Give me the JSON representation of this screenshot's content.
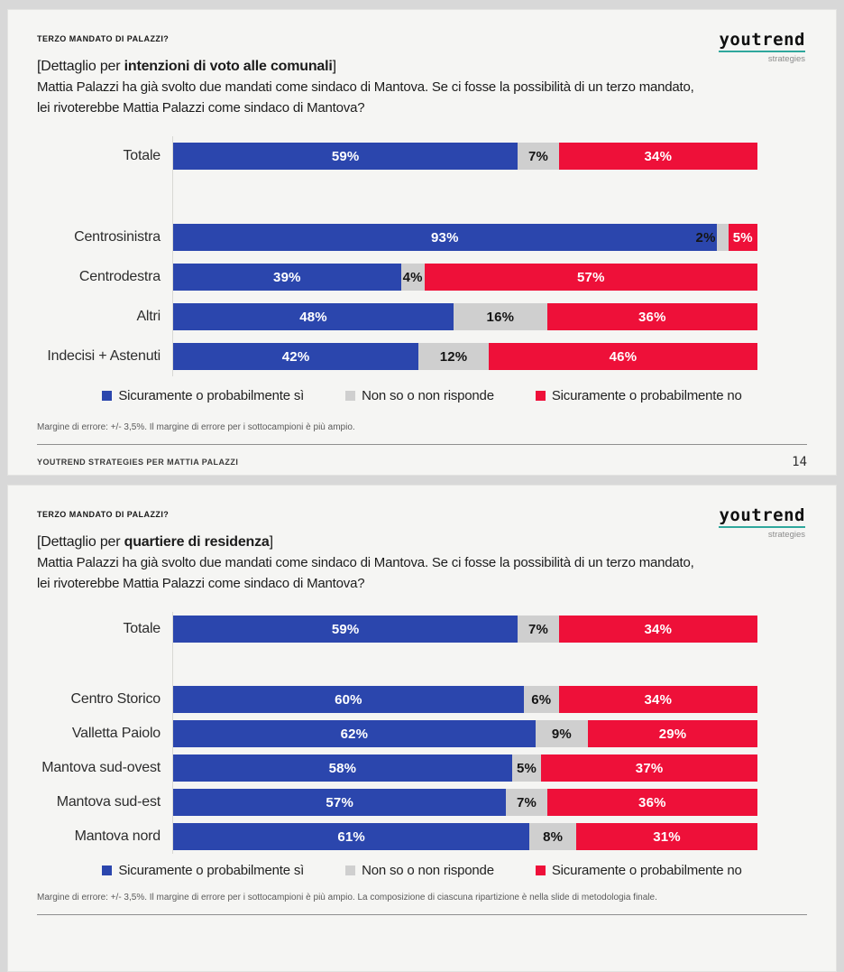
{
  "logo": {
    "name": "youtrend",
    "sub": "strategies"
  },
  "colors": {
    "yes": "#2b46ad",
    "neutral": "#cfcfcf",
    "no": "#ee1039",
    "logo_underline": "#2fa79c"
  },
  "slides": [
    {
      "kicker": "TERZO MANDATO DI PALAZZI?",
      "title_prefix": "[Dettaglio per ",
      "title_bold": "intenzioni di voto alle comunali",
      "title_suffix": "]",
      "question_line1": "Mattia Palazzi ha già svolto due mandati come sindaco di Mantova. Se ci fosse la possibilità di un terzo mandato,",
      "question_line2": "lei rivoterebbe Mattia Palazzi come sindaco di Mantova?",
      "footnote": "Margine di errore: +/- 3,5%. Il margine di errore per i sottocampioni è più ampio.",
      "footer_left": "YOUTREND STRATEGIES PER MATTIA PALAZZI",
      "page_number": "14"
    },
    {
      "kicker": "TERZO MANDATO DI PALAZZI?",
      "title_prefix": "[Dettaglio per ",
      "title_bold": "quartiere di residenza",
      "title_suffix": "]",
      "question_line1": "Mattia Palazzi ha già svolto due mandati come sindaco di Mantova. Se ci fosse la possibilità di un terzo mandato,",
      "question_line2": "lei rivoterebbe Mattia Palazzi come sindaco di Mantova?",
      "footnote": "Margine di errore: +/- 3,5%. Il margine di errore per i sottocampioni è più ampio. La composizione di ciascuna ripartizione è nella slide di metodologia finale."
    }
  ],
  "chart_data": [
    {
      "type": "bar",
      "stacked": true,
      "orientation": "horizontal",
      "title": "[Dettaglio per intenzioni di voto alle comunali]",
      "categories": [
        "Totale",
        "Centrosinistra",
        "Centrodestra",
        "Altri",
        "Indecisi + Astenuti"
      ],
      "series": [
        {
          "name": "Sicuramente o probabilmente sì",
          "color": "#2b46ad",
          "label_color": "#ffffff",
          "values": [
            59,
            93,
            39,
            48,
            42
          ]
        },
        {
          "name": "Non so o non risponde",
          "color": "#cfcfcf",
          "label_color": "#151515",
          "values": [
            7,
            2,
            4,
            16,
            12
          ]
        },
        {
          "name": "Sicuramente o probabilmente no",
          "color": "#ee1039",
          "label_color": "#ffffff",
          "values": [
            34,
            5,
            57,
            36,
            46
          ]
        }
      ],
      "xlim": [
        0,
        100
      ],
      "value_suffix": "%",
      "grid": false,
      "legend_position": "bottom",
      "gap_after_first": true
    },
    {
      "type": "bar",
      "stacked": true,
      "orientation": "horizontal",
      "title": "[Dettaglio per quartiere di residenza]",
      "categories": [
        "Totale",
        "Centro Storico",
        "Valletta Paiolo",
        "Mantova sud-ovest",
        "Mantova sud-est",
        "Mantova nord"
      ],
      "series": [
        {
          "name": "Sicuramente o probabilmente sì",
          "color": "#2b46ad",
          "label_color": "#ffffff",
          "values": [
            59,
            60,
            62,
            58,
            57,
            61
          ]
        },
        {
          "name": "Non so o non risponde",
          "color": "#cfcfcf",
          "label_color": "#151515",
          "values": [
            7,
            6,
            9,
            5,
            7,
            8
          ]
        },
        {
          "name": "Sicuramente o probabilmente no",
          "color": "#ee1039",
          "label_color": "#ffffff",
          "values": [
            34,
            34,
            29,
            37,
            36,
            31
          ]
        }
      ],
      "xlim": [
        0,
        100
      ],
      "value_suffix": "%",
      "grid": false,
      "legend_position": "bottom",
      "gap_after_first": true
    }
  ]
}
